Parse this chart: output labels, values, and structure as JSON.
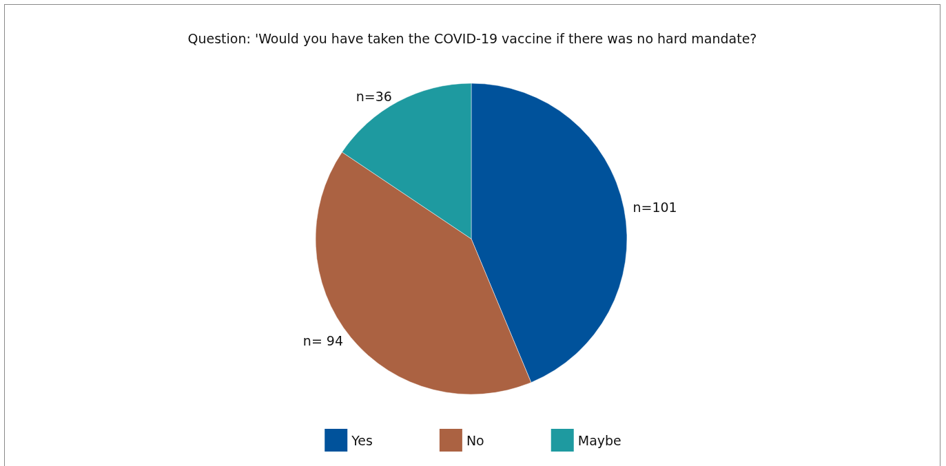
{
  "chart_data": {
    "type": "pie",
    "title": "Question: 'Would you have taken the COVID-19 vaccine if there was no hard mandate?",
    "categories": [
      "Yes",
      "No",
      "Maybe"
    ],
    "values": [
      101,
      94,
      36
    ],
    "colors": [
      "#00529b",
      "#ab6242",
      "#1e9aa0"
    ],
    "value_labels": [
      "n=101",
      "n= 94",
      "n=36"
    ],
    "legend": "bottom"
  }
}
